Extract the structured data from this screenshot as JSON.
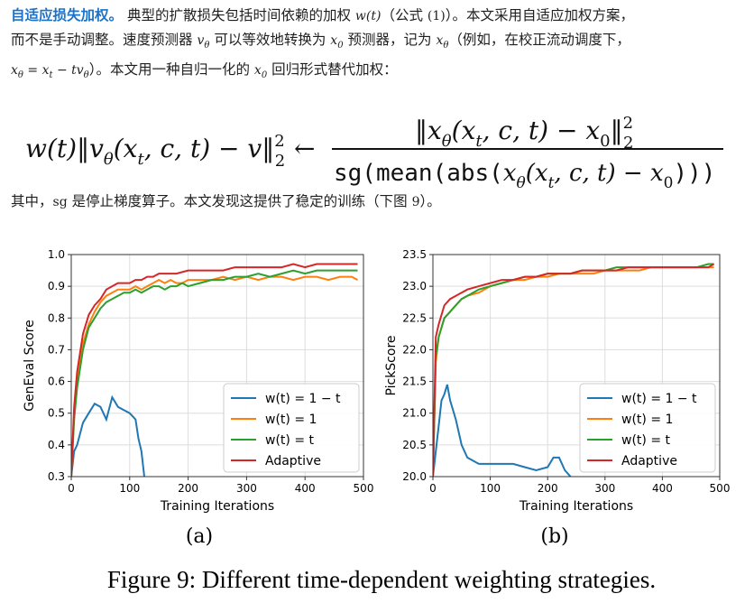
{
  "paragraph1": {
    "heading": "自适应损失加权。",
    "l1a": "典型的扩散损失包括时间依赖的加权",
    "wt": "w(t)",
    "l1b": "（公式",
    "eqref": "(1)",
    "l1c": "）。本文采用自适应加权方案，",
    "l2a": "而不是手动调整。速度预测器",
    "vtheta": "v",
    "theta_sub": "θ",
    "l2b": "可以等效地转换为",
    "x0": "x",
    "zero_sub": "0",
    "l2c": "预测器，记为",
    "xtheta": "x",
    "l2d": "（例如，在校正流动调度下，",
    "l3eq": "x",
    "l3eq_full": "= x",
    "l3eq_rest": "− tv",
    "l3a": "）。本文用一种自归一化的",
    "l3b": "回归形式替代加权："
  },
  "equation": {
    "lhs": "w(t)‖v",
    "lhs2": "(x",
    "lhs3": ", c, t) − v‖",
    "arrow": "←",
    "num": "‖x",
    "num2": "(x",
    "num3": ", c, t) − x",
    "den": "sg(mean(abs(",
    "den2": "(x",
    "den3": ", c, t) − x",
    "den4": ")))",
    "sq": "2",
    "two": "2",
    "theta": "θ",
    "t": "t",
    "zero": "0"
  },
  "paragraph2": {
    "text1": "其中，",
    "sg": "sg",
    "text2": "是停止梯度算子。本文发现这提供了稳定的训练（下图",
    "num": "9",
    "text3": "）。"
  },
  "figure": {
    "caption": "Figure 9:  Different time-dependent weighting strategies.",
    "colors": {
      "s1": "#1f77b4",
      "s2": "#ff7f0e",
      "s3": "#2ca02c",
      "s4": "#d62728"
    },
    "legend_labels": [
      "w(t) = 1 − t",
      "w(t) = 1",
      "w(t) = t",
      "Adaptive"
    ]
  },
  "chart_data": [
    {
      "type": "line",
      "sublabel": "(a)",
      "xlabel": "Training Iterations",
      "ylabel": "GenEval Score",
      "xlim": [
        0,
        500
      ],
      "ylim": [
        0.3,
        1.0
      ],
      "xticks": [
        "0",
        "100",
        "200",
        "300",
        "400",
        "500"
      ],
      "yticks": [
        "0.3",
        "0.4",
        "0.5",
        "0.6",
        "0.7",
        "0.8",
        "0.9",
        "1.0"
      ],
      "grid": true,
      "legend": "bottom-right",
      "series": [
        {
          "name": "w(t) = 1 − t",
          "x": [
            0,
            5,
            10,
            20,
            30,
            40,
            50,
            60,
            70,
            80,
            90,
            100,
            110,
            115,
            120,
            125
          ],
          "y": [
            0.3,
            0.38,
            0.4,
            0.47,
            0.5,
            0.53,
            0.52,
            0.48,
            0.55,
            0.52,
            0.51,
            0.5,
            0.48,
            0.42,
            0.38,
            0.3
          ]
        },
        {
          "name": "w(t) = 1",
          "x": [
            0,
            5,
            10,
            20,
            30,
            40,
            50,
            60,
            70,
            80,
            90,
            100,
            110,
            120,
            130,
            140,
            150,
            160,
            170,
            180,
            190,
            200,
            220,
            240,
            260,
            280,
            300,
            320,
            340,
            360,
            380,
            400,
            420,
            440,
            460,
            480,
            490
          ],
          "y": [
            0.3,
            0.5,
            0.6,
            0.72,
            0.78,
            0.82,
            0.85,
            0.87,
            0.88,
            0.89,
            0.89,
            0.89,
            0.9,
            0.89,
            0.9,
            0.91,
            0.92,
            0.91,
            0.92,
            0.91,
            0.91,
            0.92,
            0.92,
            0.92,
            0.93,
            0.92,
            0.93,
            0.92,
            0.93,
            0.93,
            0.92,
            0.93,
            0.93,
            0.92,
            0.93,
            0.93,
            0.92
          ]
        },
        {
          "name": "w(t) = t",
          "x": [
            0,
            5,
            10,
            20,
            30,
            40,
            50,
            60,
            70,
            80,
            90,
            100,
            110,
            120,
            130,
            140,
            150,
            160,
            170,
            180,
            190,
            200,
            220,
            240,
            260,
            280,
            300,
            320,
            340,
            360,
            380,
            400,
            420,
            440,
            460,
            480,
            490
          ],
          "y": [
            0.3,
            0.48,
            0.58,
            0.7,
            0.77,
            0.8,
            0.83,
            0.85,
            0.86,
            0.87,
            0.88,
            0.88,
            0.89,
            0.88,
            0.89,
            0.9,
            0.9,
            0.89,
            0.9,
            0.9,
            0.91,
            0.9,
            0.91,
            0.92,
            0.92,
            0.93,
            0.93,
            0.94,
            0.93,
            0.94,
            0.95,
            0.94,
            0.95,
            0.95,
            0.95,
            0.95,
            0.95
          ]
        },
        {
          "name": "Adaptive",
          "x": [
            0,
            5,
            10,
            20,
            30,
            40,
            50,
            60,
            70,
            80,
            90,
            100,
            110,
            120,
            130,
            140,
            150,
            160,
            180,
            200,
            220,
            240,
            260,
            280,
            300,
            320,
            340,
            360,
            380,
            400,
            420,
            440,
            460,
            480,
            490
          ],
          "y": [
            0.3,
            0.52,
            0.63,
            0.75,
            0.81,
            0.84,
            0.86,
            0.89,
            0.9,
            0.91,
            0.91,
            0.91,
            0.92,
            0.92,
            0.93,
            0.93,
            0.94,
            0.94,
            0.94,
            0.95,
            0.95,
            0.95,
            0.95,
            0.96,
            0.96,
            0.96,
            0.96,
            0.96,
            0.97,
            0.96,
            0.97,
            0.97,
            0.97,
            0.97,
            0.97
          ]
        }
      ]
    },
    {
      "type": "line",
      "sublabel": "(b)",
      "xlabel": "Training Iterations",
      "ylabel": "PickScore",
      "xlim": [
        0,
        500
      ],
      "ylim": [
        20.0,
        23.5
      ],
      "xticks": [
        "0",
        "100",
        "200",
        "300",
        "400",
        "500"
      ],
      "yticks": [
        "20.0",
        "20.5",
        "21.0",
        "21.5",
        "22.0",
        "22.5",
        "23.0",
        "23.5"
      ],
      "grid": true,
      "legend": "bottom-right",
      "series": [
        {
          "name": "w(t) = 1 − t",
          "x": [
            0,
            5,
            10,
            15,
            20,
            25,
            30,
            40,
            50,
            60,
            70,
            80,
            90,
            100,
            120,
            140,
            160,
            180,
            200,
            210,
            220,
            230,
            240
          ],
          "y": [
            20.0,
            20.4,
            20.8,
            21.2,
            21.3,
            21.45,
            21.2,
            20.9,
            20.5,
            20.3,
            20.25,
            20.2,
            20.2,
            20.2,
            20.2,
            20.2,
            20.15,
            20.1,
            20.15,
            20.3,
            20.3,
            20.1,
            20.0
          ]
        },
        {
          "name": "w(t) = 1",
          "x": [
            0,
            5,
            10,
            20,
            30,
            40,
            50,
            60,
            80,
            100,
            120,
            140,
            160,
            180,
            200,
            220,
            240,
            260,
            280,
            300,
            320,
            340,
            360,
            380,
            400,
            420,
            440,
            460,
            480,
            490
          ],
          "y": [
            20.0,
            21.8,
            22.2,
            22.5,
            22.6,
            22.7,
            22.8,
            22.85,
            22.9,
            23.0,
            23.05,
            23.1,
            23.1,
            23.15,
            23.15,
            23.2,
            23.2,
            23.2,
            23.2,
            23.25,
            23.25,
            23.25,
            23.25,
            23.3,
            23.3,
            23.3,
            23.3,
            23.3,
            23.3,
            23.3
          ]
        },
        {
          "name": "w(t) = t",
          "x": [
            0,
            5,
            10,
            20,
            30,
            40,
            50,
            60,
            80,
            100,
            120,
            140,
            160,
            180,
            200,
            220,
            240,
            260,
            280,
            300,
            320,
            340,
            360,
            380,
            400,
            420,
            440,
            460,
            480,
            490
          ],
          "y": [
            20.0,
            21.9,
            22.2,
            22.5,
            22.6,
            22.7,
            22.8,
            22.85,
            22.95,
            23.0,
            23.05,
            23.1,
            23.15,
            23.15,
            23.2,
            23.2,
            23.2,
            23.25,
            23.25,
            23.25,
            23.3,
            23.3,
            23.3,
            23.3,
            23.3,
            23.3,
            23.3,
            23.3,
            23.35,
            23.35
          ]
        },
        {
          "name": "Adaptive",
          "x": [
            0,
            5,
            10,
            20,
            30,
            40,
            50,
            60,
            80,
            100,
            120,
            140,
            160,
            180,
            200,
            220,
            240,
            260,
            280,
            300,
            320,
            340,
            360,
            380,
            400,
            420,
            440,
            460,
            480,
            490
          ],
          "y": [
            20.0,
            22.2,
            22.4,
            22.7,
            22.8,
            22.85,
            22.9,
            22.95,
            23.0,
            23.05,
            23.1,
            23.1,
            23.15,
            23.15,
            23.2,
            23.2,
            23.2,
            23.25,
            23.25,
            23.25,
            23.25,
            23.3,
            23.3,
            23.3,
            23.3,
            23.3,
            23.3,
            23.3,
            23.3,
            23.35
          ]
        }
      ]
    }
  ]
}
